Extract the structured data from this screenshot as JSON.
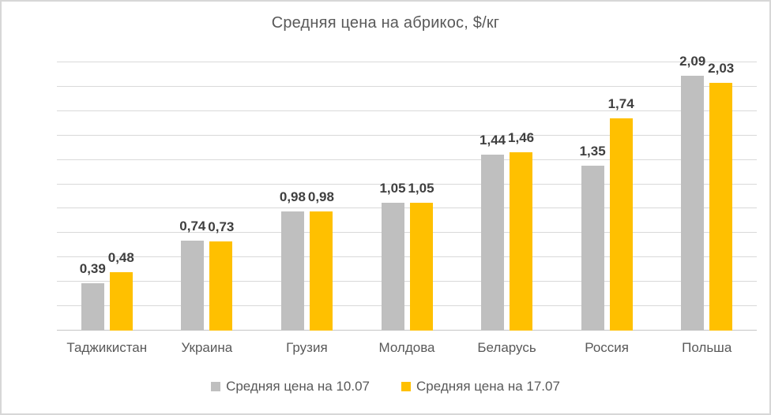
{
  "chart_data": {
    "type": "bar",
    "title": "Средняя цена на абрикос, $/кг",
    "categories": [
      "Таджикистан",
      "Украина",
      "Грузия",
      "Молдова",
      "Беларусь",
      "Россия",
      "Польша"
    ],
    "series": [
      {
        "name": "Средняя цена на 10.07",
        "color": "#BFBFBF",
        "values": [
          0.39,
          0.74,
          0.98,
          1.05,
          1.44,
          1.35,
          2.09
        ],
        "labels": [
          "0,39",
          "0,74",
          "0,98",
          "1,05",
          "1,44",
          "1,35",
          "2,09"
        ]
      },
      {
        "name": "Средняя цена на 17.07",
        "color": "#FFC000",
        "values": [
          0.48,
          0.73,
          0.98,
          1.05,
          1.46,
          1.74,
          2.03
        ],
        "labels": [
          "0,48",
          "0,73",
          "0,98",
          "1,05",
          "1,46",
          "1,74",
          "2,03"
        ]
      }
    ],
    "xlabel": "",
    "ylabel": "",
    "ylim": [
      0,
      2.2
    ],
    "ytick_step": 0.2,
    "ytick_labels": [
      "0,00",
      "0,20",
      "0,40",
      "0,60",
      "0,80",
      "1,00",
      "1,20",
      "1,40",
      "1,60",
      "1,80",
      "2,00",
      "2,20"
    ],
    "grid": true,
    "legend_position": "bottom"
  },
  "colors": {
    "background": "#FFFFFF",
    "border": "#D7D7D7",
    "gridline": "#D9D9D9",
    "axis_line": "#C6C6C6",
    "title_text": "#595959",
    "axis_text": "#595959",
    "data_label_text": "#3F3F3F",
    "series1": "#BFBFBF",
    "series2": "#FFC000"
  }
}
